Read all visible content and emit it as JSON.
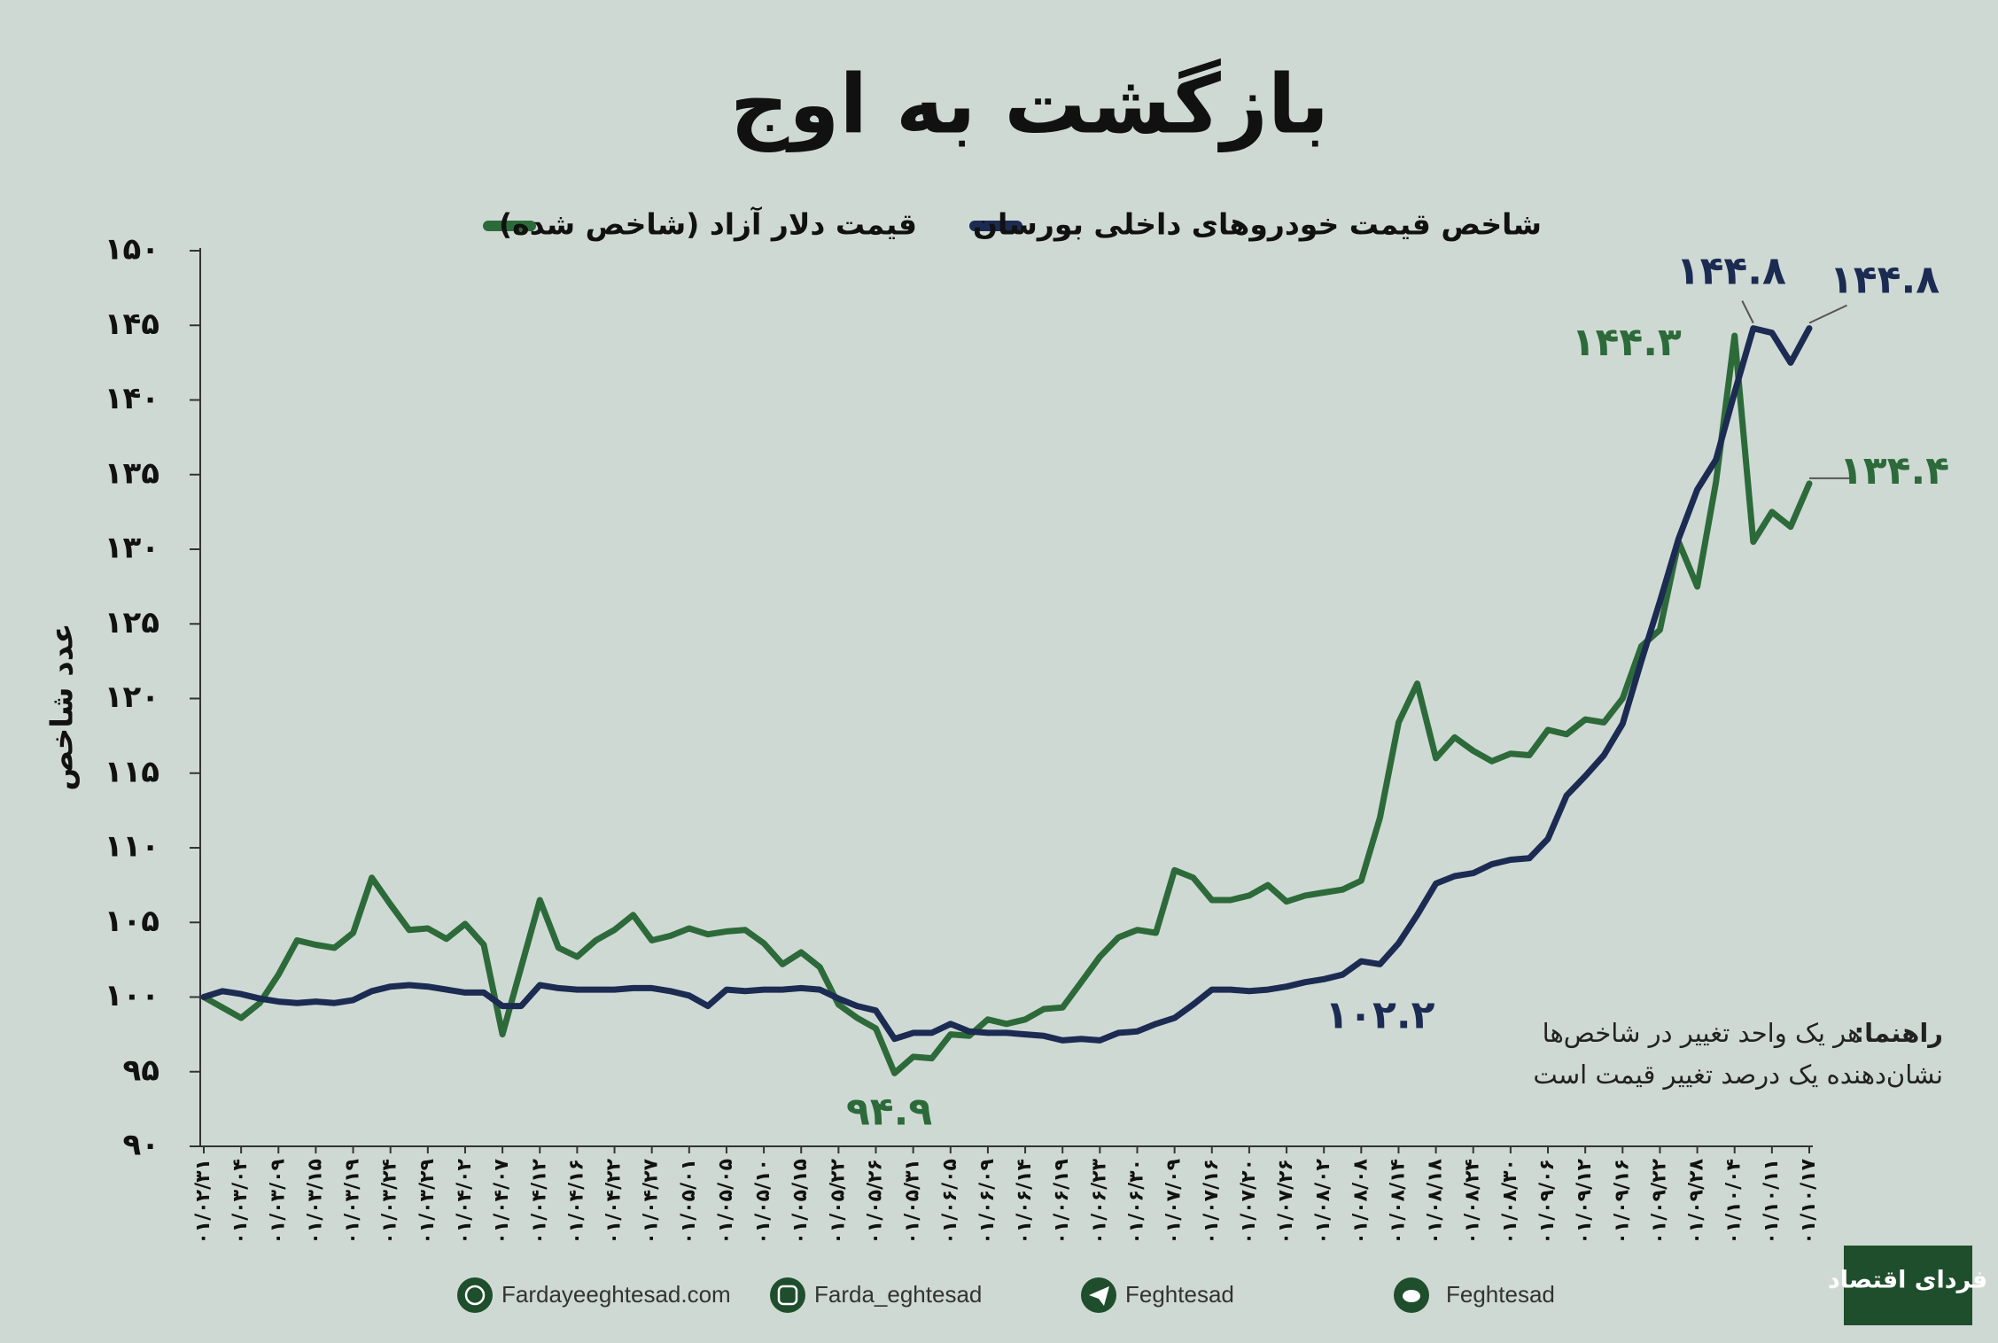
{
  "chart_data": {
    "type": "line",
    "title": "بازگشت به اوج",
    "y_label": "عدد شاخص",
    "note_bold": "راهنما:",
    "note_line1": "هر یک واحد تغییر در شاخص‌ها",
    "note_line2": "نشان‌دهنده یک درصد تغییر قیمت است",
    "ylim": [
      90,
      150
    ],
    "yticks": [
      {
        "value": 90,
        "label": "۹۰"
      },
      {
        "value": 95,
        "label": "۹۵"
      },
      {
        "value": 100,
        "label": "۱۰۰"
      },
      {
        "value": 105,
        "label": "۱۰۵"
      },
      {
        "value": 110,
        "label": "۱۱۰"
      },
      {
        "value": 115,
        "label": "۱۱۵"
      },
      {
        "value": 120,
        "label": "۱۲۰"
      },
      {
        "value": 125,
        "label": "۱۲۵"
      },
      {
        "value": 130,
        "label": "۱۳۰"
      },
      {
        "value": 135,
        "label": "۱۳۵"
      },
      {
        "value": 140,
        "label": "۱۴۰"
      },
      {
        "value": 145,
        "label": "۱۴۵"
      },
      {
        "value": 150,
        "label": "۱۵۰"
      }
    ],
    "categories": [
      "۰۱/۰۲/۳۱",
      null,
      "۰۱/۰۳/۰۴",
      null,
      "۰۱/۰۳/۰۹",
      null,
      "۰۱/۰۳/۱۵",
      null,
      "۰۱/۰۳/۱۹",
      null,
      "۰۱/۰۳/۲۴",
      null,
      "۰۱/۰۳/۲۹",
      null,
      "۰۱/۰۴/۰۲",
      null,
      "۰۱/۰۴/۰۷",
      null,
      "۰۱/۰۴/۱۲",
      null,
      "۰۱/۰۴/۱۶",
      null,
      "۰۱/۰۴/۲۲",
      null,
      "۰۱/۰۴/۲۷",
      null,
      "۰۱/۰۵/۰۱",
      null,
      "۰۱/۰۵/۰۵",
      null,
      "۰۱/۰۵/۱۰",
      null,
      "۰۱/۰۵/۱۵",
      null,
      "۰۱/۰۵/۲۲",
      null,
      "۰۱/۰۵/۲۶",
      null,
      "۰۱/۰۵/۳۱",
      null,
      "۰۱/۰۶/۰۵",
      null,
      "۰۱/۰۶/۰۹",
      null,
      "۰۱/۰۶/۱۴",
      null,
      "۰۱/۰۶/۱۹",
      null,
      "۰۱/۰۶/۲۳",
      null,
      "۰۱/۰۶/۳۰",
      null,
      "۰۱/۰۷/۰۹",
      null,
      "۰۱/۰۷/۱۶",
      null,
      "۰۱/۰۷/۲۰",
      null,
      "۰۱/۰۷/۲۶",
      null,
      "۰۱/۰۸/۰۲",
      null,
      "۰۱/۰۸/۰۸",
      null,
      "۰۱/۰۸/۱۴",
      null,
      "۰۱/۰۸/۱۸",
      null,
      "۰۱/۰۸/۲۴",
      null,
      "۰۱/۰۸/۳۰",
      null,
      "۰۱/۰۹/۰۶",
      null,
      "۰۱/۰۹/۱۲",
      null,
      "۰۱/۰۹/۱۶",
      null,
      "۰۱/۰۹/۲۲",
      null,
      "۰۱/۰۹/۲۸",
      null,
      "۰۱/۱۰/۰۴",
      null,
      "۰۱/۱۰/۱۱",
      null,
      "۰۱/۱۰/۱۷"
    ],
    "series": [
      {
        "name": "شاخص قیمت خودروهای داخلی بورسان",
        "color": "#1c2b52",
        "values": [
          100,
          100.4,
          100.2,
          99.9,
          99.7,
          99.6,
          99.7,
          99.6,
          99.8,
          100.4,
          100.7,
          100.8,
          100.7,
          100.5,
          100.3,
          100.3,
          99.4,
          99.4,
          100.8,
          100.6,
          100.5,
          100.5,
          100.5,
          100.6,
          100.6,
          100.4,
          100.1,
          99.4,
          100.5,
          100.4,
          100.5,
          100.5,
          100.6,
          100.5,
          99.9,
          99.4,
          99.1,
          97.2,
          97.6,
          97.6,
          98.2,
          97.7,
          97.6,
          97.6,
          97.5,
          97.4,
          97.1,
          97.2,
          97.1,
          97.6,
          97.7,
          98.2,
          98.6,
          99.5,
          100.5,
          100.5,
          100.4,
          100.5,
          100.7,
          101.0,
          101.2,
          101.5,
          102.4,
          102.2,
          103.6,
          105.5,
          107.6,
          108.1,
          108.3,
          108.9,
          109.2,
          109.3,
          110.6,
          113.5,
          114.8,
          116.2,
          118.3,
          122.5,
          126.5,
          130.7,
          134.0,
          136.0,
          140.5,
          144.8,
          144.5,
          142.5,
          144.8
        ],
        "value_labels": [
          null,
          null,
          null,
          null,
          null,
          null,
          null,
          null,
          null,
          null,
          null,
          null,
          null,
          null,
          null,
          null,
          null,
          null,
          null,
          null,
          null,
          null,
          null,
          null,
          null,
          null,
          null,
          null,
          null,
          null,
          null,
          null,
          null,
          null,
          null,
          null,
          null,
          null,
          null,
          null,
          null,
          null,
          null,
          null,
          null,
          null,
          null,
          null,
          null,
          null,
          null,
          null,
          null,
          null,
          null,
          null,
          null,
          null,
          null,
          null,
          null,
          null,
          null,
          "۱۰۲.۲",
          null,
          null,
          null,
          null,
          null,
          null,
          null,
          null,
          null,
          null,
          null,
          null,
          null,
          null,
          null,
          null,
          null,
          null,
          null,
          "۱۴۴.۸",
          null,
          null,
          "۱۴۴.۸"
        ]
      },
      {
        "name": "قیمت دلار آزاد (شاخص شده)",
        "color": "#2d6a3a",
        "values": [
          100,
          99.3,
          98.6,
          99.6,
          101.5,
          103.8,
          103.5,
          103.3,
          104.3,
          108.0,
          106.2,
          104.5,
          104.6,
          103.9,
          104.9,
          103.5,
          97.5,
          102,
          106.5,
          103.3,
          102.7,
          103.8,
          104.5,
          105.5,
          103.8,
          104.1,
          104.6,
          104.2,
          104.4,
          104.5,
          103.6,
          102.2,
          103,
          102,
          99.5,
          98.6,
          97.9,
          94.9,
          96,
          95.9,
          97.5,
          97.4,
          98.5,
          98.2,
          98.5,
          99.2,
          99.3,
          101,
          102.7,
          104,
          104.5,
          104.3,
          108.5,
          108,
          106.5,
          106.5,
          106.8,
          107.5,
          106.4,
          106.8,
          107,
          107.2,
          107.8,
          112,
          118.4,
          121,
          116,
          117.4,
          116.5,
          115.8,
          116.3,
          116.2,
          117.9,
          117.6,
          118.6,
          118.4,
          120,
          123.5,
          124.6,
          130.5,
          127.5,
          134.5,
          144.3,
          130.5,
          132.5,
          131.5,
          134.4
        ],
        "value_labels": [
          null,
          null,
          null,
          null,
          null,
          null,
          null,
          null,
          null,
          null,
          null,
          null,
          null,
          null,
          null,
          null,
          null,
          null,
          null,
          null,
          null,
          null,
          null,
          null,
          null,
          null,
          null,
          null,
          null,
          null,
          null,
          null,
          null,
          null,
          null,
          null,
          null,
          "۹۴.۹",
          null,
          null,
          null,
          null,
          null,
          null,
          null,
          null,
          null,
          null,
          null,
          null,
          null,
          null,
          null,
          null,
          null,
          null,
          null,
          null,
          null,
          null,
          null,
          null,
          null,
          null,
          null,
          null,
          null,
          null,
          null,
          null,
          null,
          null,
          null,
          null,
          null,
          null,
          null,
          null,
          null,
          null,
          null,
          null,
          "۱۴۴.۳",
          null,
          null,
          null,
          "۱۳۴.۴"
        ]
      }
    ]
  },
  "footer": {
    "website": "Fardayeeghtesad.com",
    "instagram": "Farda_eghtesad",
    "telegram": "Feghtesad",
    "twitter": "Feghtesad"
  },
  "logo": "فردای اقتصاد"
}
